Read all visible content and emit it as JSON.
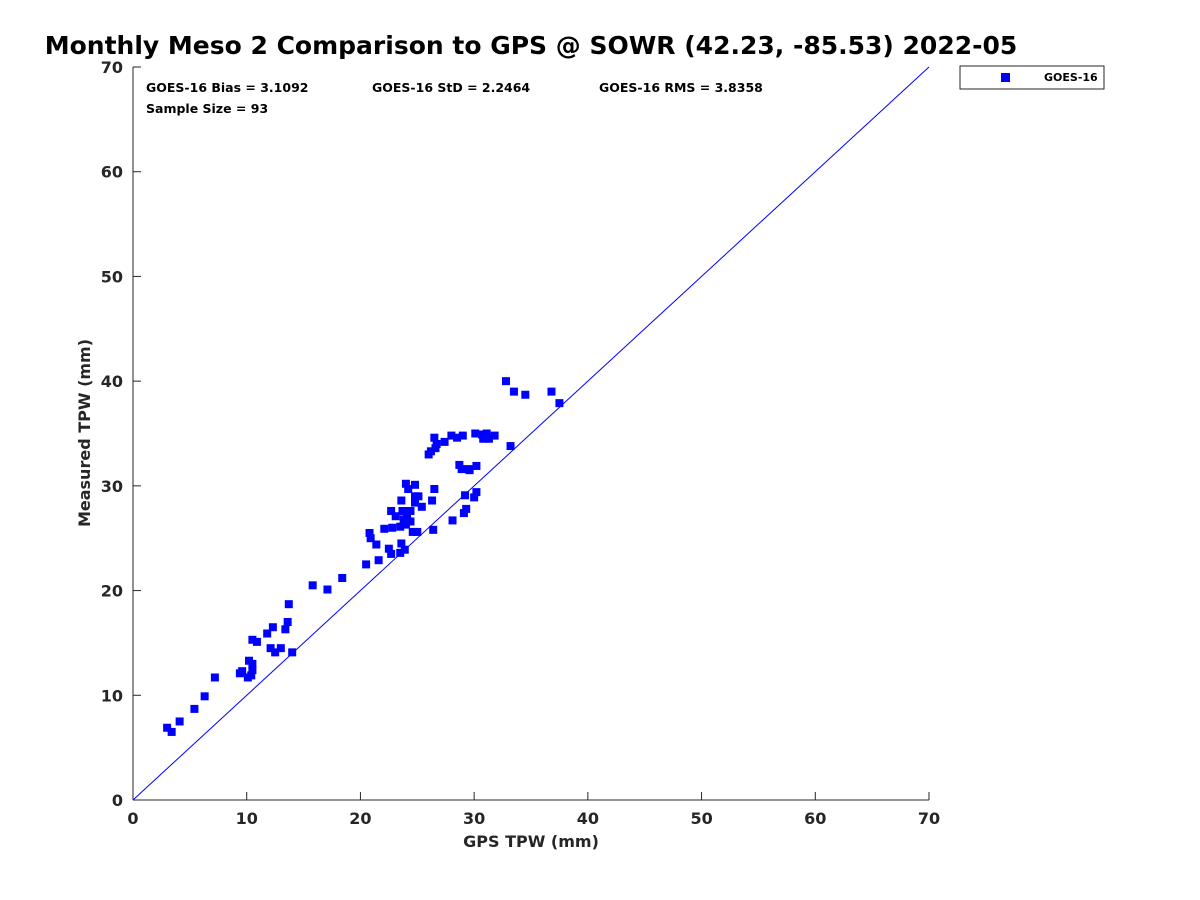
{
  "colors": {
    "marker": "#0000ff",
    "ref_line": "#0000ff",
    "axis": "#262626",
    "text": "#000000"
  },
  "stats": {
    "bias": "GOES-16 Bias = 3.1092",
    "std": "GOES-16 StD = 2.2464",
    "rms": "GOES-16 RMS = 3.8358",
    "sample": "Sample Size = 93"
  },
  "chart_data": {
    "type": "scatter",
    "title": "Monthly Meso 2 Comparison to GPS @ SOWR (42.23, -85.53) 2022-05",
    "xlabel": "GPS TPW (mm)",
    "ylabel": "Measured TPW (mm)",
    "xlim": [
      0,
      70
    ],
    "ylim": [
      0,
      70
    ],
    "xticks": [
      0,
      10,
      20,
      30,
      40,
      50,
      60,
      70
    ],
    "yticks": [
      0,
      10,
      20,
      30,
      40,
      50,
      60,
      70
    ],
    "grid": false,
    "legend_position": "top-right, outside plot",
    "reference_line": {
      "x": [
        0,
        70
      ],
      "y": [
        0,
        70
      ],
      "color": "#0000ff"
    },
    "series": [
      {
        "name": "GOES-16",
        "marker": "square",
        "color": "#0000ff",
        "points": [
          [
            3.0,
            6.9
          ],
          [
            3.4,
            6.5
          ],
          [
            4.1,
            7.5
          ],
          [
            5.4,
            8.7
          ],
          [
            6.3,
            9.9
          ],
          [
            7.2,
            11.7
          ],
          [
            9.4,
            12.1
          ],
          [
            9.6,
            12.3
          ],
          [
            10.1,
            11.7
          ],
          [
            10.2,
            13.3
          ],
          [
            10.4,
            11.9
          ],
          [
            10.5,
            12.4
          ],
          [
            10.5,
            13.0
          ],
          [
            10.5,
            15.3
          ],
          [
            10.9,
            15.1
          ],
          [
            11.8,
            15.9
          ],
          [
            12.1,
            14.5
          ],
          [
            12.3,
            16.5
          ],
          [
            12.5,
            14.1
          ],
          [
            13.0,
            14.5
          ],
          [
            13.4,
            16.3
          ],
          [
            13.6,
            17.0
          ],
          [
            13.7,
            18.7
          ],
          [
            14.0,
            14.1
          ],
          [
            15.8,
            20.5
          ],
          [
            17.1,
            20.1
          ],
          [
            18.4,
            21.2
          ],
          [
            20.5,
            22.5
          ],
          [
            20.8,
            25.5
          ],
          [
            20.9,
            25.0
          ],
          [
            21.4,
            24.4
          ],
          [
            21.6,
            22.9
          ],
          [
            22.1,
            25.9
          ],
          [
            22.5,
            24.0
          ],
          [
            22.7,
            23.5
          ],
          [
            22.7,
            27.6
          ],
          [
            22.8,
            26.0
          ],
          [
            23.1,
            27.1
          ],
          [
            23.5,
            26.1
          ],
          [
            23.5,
            23.6
          ],
          [
            23.6,
            24.5
          ],
          [
            23.6,
            28.6
          ],
          [
            23.7,
            27.6
          ],
          [
            23.8,
            26.8
          ],
          [
            23.9,
            23.9
          ],
          [
            24.0,
            30.2
          ],
          [
            24.0,
            26.3
          ],
          [
            24.1,
            27.2
          ],
          [
            24.2,
            29.7
          ],
          [
            24.4,
            26.6
          ],
          [
            24.4,
            27.6
          ],
          [
            24.6,
            25.6
          ],
          [
            24.8,
            29.0
          ],
          [
            24.8,
            28.4
          ],
          [
            24.8,
            30.1
          ],
          [
            25.0,
            25.6
          ],
          [
            25.1,
            29.0
          ],
          [
            25.4,
            28.0
          ],
          [
            26.0,
            33.0
          ],
          [
            26.2,
            33.3
          ],
          [
            26.3,
            28.6
          ],
          [
            26.4,
            25.8
          ],
          [
            26.5,
            29.7
          ],
          [
            26.5,
            34.6
          ],
          [
            26.6,
            33.6
          ],
          [
            26.7,
            34.0
          ],
          [
            27.4,
            34.2
          ],
          [
            28.0,
            34.8
          ],
          [
            28.1,
            26.7
          ],
          [
            28.5,
            34.6
          ],
          [
            28.7,
            32.0
          ],
          [
            28.9,
            31.6
          ],
          [
            29.0,
            34.8
          ],
          [
            29.1,
            27.4
          ],
          [
            29.2,
            29.1
          ],
          [
            29.3,
            27.8
          ],
          [
            29.5,
            31.6
          ],
          [
            30.0,
            28.9
          ],
          [
            30.1,
            35.0
          ],
          [
            30.2,
            29.4
          ],
          [
            30.2,
            31.9
          ],
          [
            30.7,
            34.9
          ],
          [
            30.8,
            34.5
          ],
          [
            31.1,
            35.0
          ],
          [
            31.3,
            34.5
          ],
          [
            31.8,
            34.8
          ],
          [
            32.8,
            40.0
          ],
          [
            33.2,
            33.8
          ],
          [
            33.5,
            39.0
          ],
          [
            34.5,
            38.7
          ],
          [
            36.8,
            39.0
          ],
          [
            37.5,
            37.9
          ],
          [
            29.6,
            31.5
          ]
        ]
      }
    ]
  }
}
